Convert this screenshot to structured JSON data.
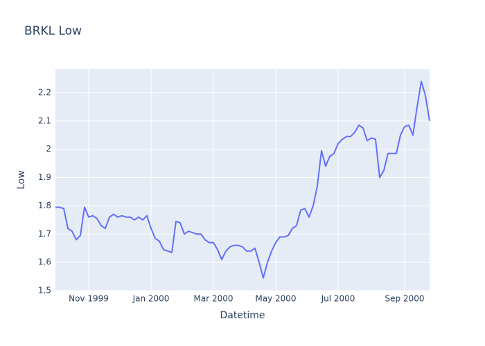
{
  "chart_data": {
    "type": "line",
    "title": "BRKL Low",
    "x_label": "Datetime",
    "y_label": "Low",
    "categories": [
      null,
      null,
      null,
      null,
      null,
      null,
      null,
      null,
      "Nov 1999",
      null,
      null,
      null,
      null,
      null,
      null,
      null,
      null,
      null,
      null,
      null,
      null,
      null,
      null,
      "Jan 2000",
      null,
      null,
      null,
      null,
      null,
      null,
      null,
      null,
      null,
      null,
      null,
      null,
      null,
      null,
      "Mar 2000",
      null,
      null,
      null,
      null,
      null,
      null,
      null,
      null,
      null,
      null,
      null,
      null,
      null,
      null,
      "May 2000",
      null,
      null,
      null,
      null,
      null,
      null,
      null,
      null,
      null,
      null,
      null,
      null,
      null,
      null,
      "Jul 2000",
      null,
      null,
      null,
      null,
      null,
      null,
      null,
      null,
      null,
      null,
      null,
      null,
      null,
      null,
      null,
      "Sep 2000",
      null,
      null,
      null,
      null,
      null,
      null
    ],
    "series": [
      {
        "name": "Low",
        "color": "#636efa",
        "values": [
          1.795,
          1.795,
          1.79,
          1.72,
          1.71,
          1.68,
          1.695,
          1.795,
          1.76,
          1.765,
          1.755,
          1.73,
          1.72,
          1.76,
          1.77,
          1.76,
          1.765,
          1.76,
          1.76,
          1.75,
          1.76,
          1.75,
          1.765,
          1.72,
          1.685,
          1.675,
          1.645,
          1.64,
          1.635,
          1.745,
          1.74,
          1.7,
          1.71,
          1.705,
          1.7,
          1.7,
          1.68,
          1.67,
          1.67,
          1.645,
          1.61,
          1.64,
          1.655,
          1.66,
          1.66,
          1.655,
          1.64,
          1.64,
          1.65,
          1.6,
          1.545,
          1.6,
          1.64,
          1.67,
          1.69,
          1.69,
          1.695,
          1.72,
          1.73,
          1.785,
          1.79,
          1.76,
          1.8,
          1.87,
          1.995,
          1.94,
          1.975,
          1.985,
          2.02,
          2.035,
          2.045,
          2.045,
          2.06,
          2.085,
          2.075,
          2.03,
          2.04,
          2.035,
          1.9,
          1.925,
          1.985,
          1.985,
          1.985,
          2.05,
          2.08,
          2.085,
          2.05,
          2.15,
          2.24,
          2.19,
          2.1
        ]
      }
    ],
    "ylim": [
      1.5,
      2.283
    ],
    "yticks": [
      1.5,
      1.6,
      1.7,
      1.8,
      1.9,
      2,
      2.1,
      2.2
    ],
    "grid": true,
    "background": "#e5ecf6"
  }
}
